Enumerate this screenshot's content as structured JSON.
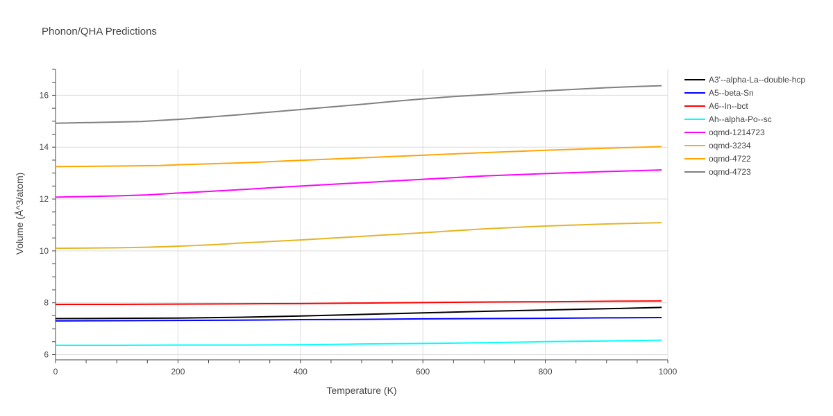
{
  "chart_data": {
    "type": "line",
    "title": "Phonon/QHA Predictions",
    "xlabel": "Temperature (K)",
    "ylabel": "Volume (Å^3/atom)",
    "xlim": [
      0,
      1000
    ],
    "ylim": [
      5.8,
      17.0
    ],
    "xticks": [
      0,
      200,
      400,
      600,
      800,
      1000
    ],
    "yticks": [
      6,
      8,
      10,
      12,
      14,
      16
    ],
    "grid": true,
    "legend_position": "top-right-outside",
    "series": [
      {
        "name": "A3'--alpha-La--double-hcp",
        "color": "#000000",
        "x": [
          0,
          100,
          200,
          300,
          400,
          500,
          600,
          700,
          800,
          900,
          990
        ],
        "y": [
          7.39,
          7.4,
          7.41,
          7.44,
          7.49,
          7.55,
          7.61,
          7.67,
          7.72,
          7.77,
          7.82
        ]
      },
      {
        "name": "A5--beta-Sn",
        "color": "#0000ff",
        "x": [
          0,
          100,
          200,
          300,
          400,
          500,
          600,
          700,
          800,
          900,
          990
        ],
        "y": [
          7.3,
          7.31,
          7.32,
          7.33,
          7.35,
          7.36,
          7.38,
          7.39,
          7.4,
          7.42,
          7.43
        ]
      },
      {
        "name": "A6--In--bct",
        "color": "#ff0000",
        "x": [
          0,
          100,
          200,
          300,
          400,
          500,
          600,
          700,
          800,
          900,
          990
        ],
        "y": [
          7.94,
          7.94,
          7.95,
          7.96,
          7.97,
          7.99,
          8.01,
          8.03,
          8.04,
          8.06,
          8.07
        ]
      },
      {
        "name": "Ah--alpha-Po--sc",
        "color": "#00ffff",
        "x": [
          0,
          100,
          200,
          300,
          400,
          500,
          600,
          700,
          800,
          900,
          990
        ],
        "y": [
          6.36,
          6.36,
          6.37,
          6.37,
          6.38,
          6.41,
          6.43,
          6.46,
          6.5,
          6.53,
          6.56
        ]
      },
      {
        "name": "oqmd-1214723",
        "color": "#ff00ff",
        "x": [
          0,
          100,
          150,
          200,
          300,
          400,
          500,
          600,
          700,
          800,
          900,
          990
        ],
        "y": [
          12.07,
          12.12,
          12.16,
          12.23,
          12.36,
          12.5,
          12.63,
          12.76,
          12.89,
          12.98,
          13.06,
          13.12
        ]
      },
      {
        "name": "oqmd-3234",
        "color": "#e6b422",
        "x": [
          0,
          100,
          150,
          200,
          260,
          300,
          400,
          500,
          600,
          700,
          800,
          900,
          990
        ],
        "y": [
          10.1,
          10.12,
          10.14,
          10.18,
          10.24,
          10.3,
          10.42,
          10.56,
          10.7,
          10.85,
          10.96,
          11.04,
          11.09
        ]
      },
      {
        "name": "oqmd-4722",
        "color": "#ffa500",
        "x": [
          0,
          100,
          170,
          200,
          300,
          400,
          500,
          600,
          700,
          800,
          900,
          990
        ],
        "y": [
          13.25,
          13.27,
          13.29,
          13.32,
          13.39,
          13.49,
          13.59,
          13.69,
          13.79,
          13.88,
          13.96,
          14.02
        ]
      },
      {
        "name": "oqmd-4723",
        "color": "#808080",
        "x": [
          0,
          140,
          200,
          250,
          300,
          350,
          400,
          450,
          500,
          550,
          600,
          650,
          700,
          750,
          800,
          850,
          900,
          950,
          990
        ],
        "y": [
          14.92,
          14.99,
          15.07,
          15.16,
          15.25,
          15.35,
          15.45,
          15.55,
          15.65,
          15.76,
          15.86,
          15.95,
          16.02,
          16.1,
          16.17,
          16.23,
          16.29,
          16.34,
          16.37
        ]
      }
    ]
  }
}
